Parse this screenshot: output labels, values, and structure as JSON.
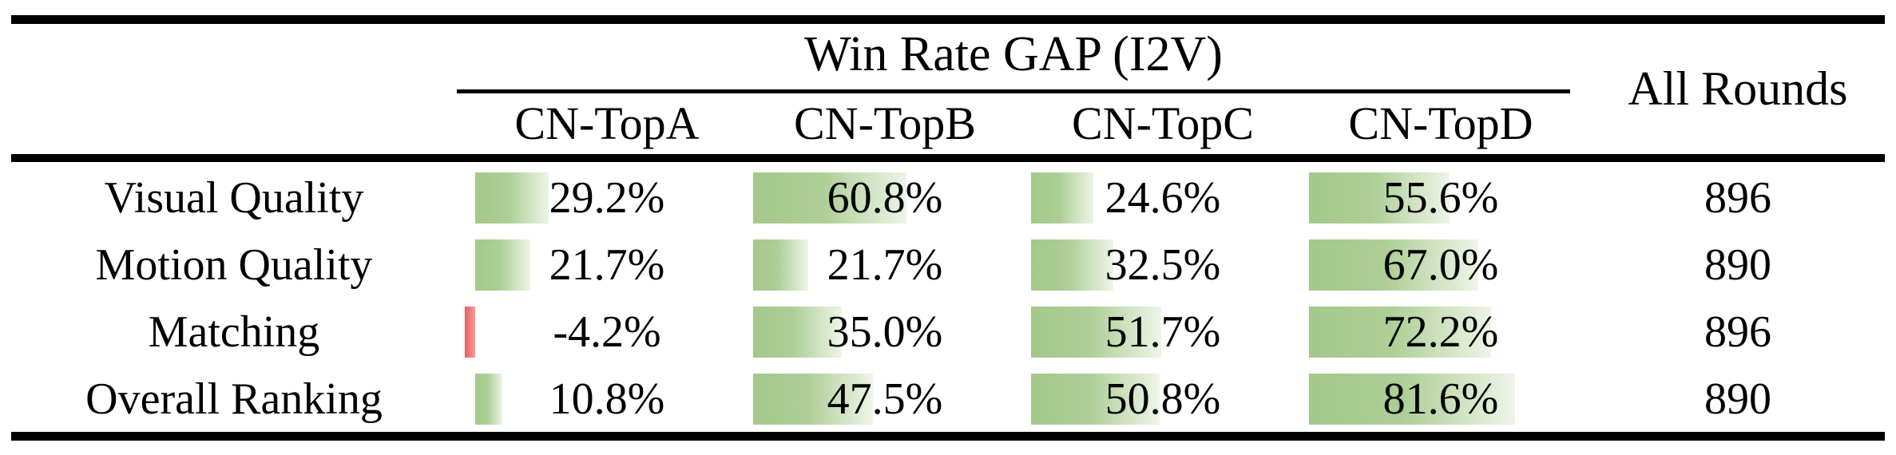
{
  "table": {
    "span_header": "Win Rate GAP (I2V)",
    "all_rounds_header": "All Rounds",
    "columns": [
      "CN-TopA",
      "CN-TopB",
      "CN-TopC",
      "CN-TopD"
    ],
    "rows": [
      {
        "label": "Visual Quality",
        "cells": [
          {
            "text": "29.2%",
            "pct": 29.2
          },
          {
            "text": "60.8%",
            "pct": 60.8
          },
          {
            "text": "24.6%",
            "pct": 24.6
          },
          {
            "text": "55.6%",
            "pct": 55.6
          }
        ],
        "all_rounds": "896"
      },
      {
        "label": "Motion Quality",
        "cells": [
          {
            "text": "21.7%",
            "pct": 21.7
          },
          {
            "text": "21.7%",
            "pct": 21.7
          },
          {
            "text": "32.5%",
            "pct": 32.5
          },
          {
            "text": "67.0%",
            "pct": 67.0
          }
        ],
        "all_rounds": "890"
      },
      {
        "label": "Matching",
        "cells": [
          {
            "text": "-4.2%",
            "pct": -4.2
          },
          {
            "text": "35.0%",
            "pct": 35.0
          },
          {
            "text": "51.7%",
            "pct": 51.7
          },
          {
            "text": "72.2%",
            "pct": 72.2
          }
        ],
        "all_rounds": "896"
      },
      {
        "label": "Overall Ranking",
        "cells": [
          {
            "text": "10.8%",
            "pct": 10.8
          },
          {
            "text": "47.5%",
            "pct": 47.5
          },
          {
            "text": "50.8%",
            "pct": 50.8
          },
          {
            "text": "81.6%",
            "pct": 81.6
          }
        ],
        "all_rounds": "890"
      }
    ]
  },
  "chart_data": {
    "type": "table",
    "title": "Win Rate GAP (I2V)",
    "row_labels": [
      "Visual Quality",
      "Motion Quality",
      "Matching",
      "Overall Ranking"
    ],
    "categories": [
      "CN-TopA",
      "CN-TopB",
      "CN-TopC",
      "CN-TopD"
    ],
    "series": [
      {
        "name": "CN-TopA",
        "values": [
          29.2,
          21.7,
          -4.2,
          10.8
        ]
      },
      {
        "name": "CN-TopB",
        "values": [
          60.8,
          21.7,
          35.0,
          47.5
        ]
      },
      {
        "name": "CN-TopC",
        "values": [
          24.6,
          32.5,
          51.7,
          50.8
        ]
      },
      {
        "name": "CN-TopD",
        "values": [
          55.6,
          67.0,
          72.2,
          81.6
        ]
      }
    ],
    "all_rounds": [
      896,
      890,
      896,
      890
    ],
    "bar_style": "in-cell gradient data bars proportional to percentage, positive green, negative red"
  },
  "colors": {
    "positive_bar_start": "#a4c88a",
    "positive_bar_end": "#eef5e8",
    "negative_bar": "#ee5f5f",
    "text": "#000000",
    "rule": "#000000",
    "background": "#ffffff"
  }
}
